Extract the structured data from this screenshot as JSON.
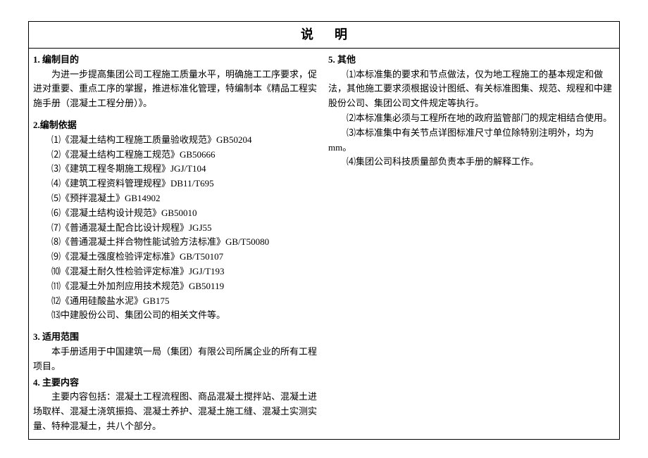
{
  "title": "说明",
  "left": {
    "section1": {
      "heading": "1. 编制目的",
      "para": "为进一步提高集团公司工程施工质量水平，明确施工工序要求，促进对重要、重点工序的掌握，推进标准化管理，特编制本《精品工程实施手册（混凝土工程分册）》。"
    },
    "section2": {
      "heading": "2.编制依据",
      "items": [
        "⑴《混凝土结构工程施工质量验收规范》GB50204",
        "⑵《混凝土结构工程施工规范》GB50666",
        "⑶《建筑工程冬期施工规程》JGJ/T104",
        "⑷《建筑工程资料管理规程》DB11/T695",
        "⑸《预拌混凝土》GB14902",
        "⑹《混凝土结构设计规范》GB50010",
        "⑺《普通混凝土配合比设计规程》JGJ55",
        "⑻《普通混凝土拌合物性能试验方法标准》GB/T50080",
        "⑼《混凝土强度检验评定标准》GB/T50107",
        "⑽《混凝土耐久性检验评定标准》JGJ/T193",
        "⑾《混凝土外加剂应用技术规范》GB50119",
        "⑿《通用硅酸盐水泥》GB175",
        "⒀中建股份公司、集团公司的相关文件等。"
      ]
    },
    "section3": {
      "heading": "3. 适用范围",
      "para": "本手册适用于中国建筑一局（集团）有限公司所属企业的所有工程项目。"
    },
    "section4": {
      "heading": "4. 主要内容",
      "para": "主要内容包括：混凝土工程流程图、商品混凝土搅拌站、混凝土进场取样、混凝土浇筑振捣、混凝土养护、混凝土施工缝、混凝土实测实量、特种混凝土，共八个部分。"
    }
  },
  "right": {
    "section5": {
      "heading": "5. 其他",
      "items": [
        "⑴本标准集的要求和节点做法，仅为地工程施工的基本规定和做法，其他施工要求须根据设计图纸、有关标准图集、规范、规程和中建股份公司、集团公司文件规定等执行。",
        "⑵本标准集必须与工程所在地的政府监管部门的规定相结合使用。",
        "⑶本标准集中有关节点详图标准尺寸单位除特别注明外，均为mm。",
        "⑷集团公司科技质量部负责本手册的解释工作。"
      ]
    }
  }
}
